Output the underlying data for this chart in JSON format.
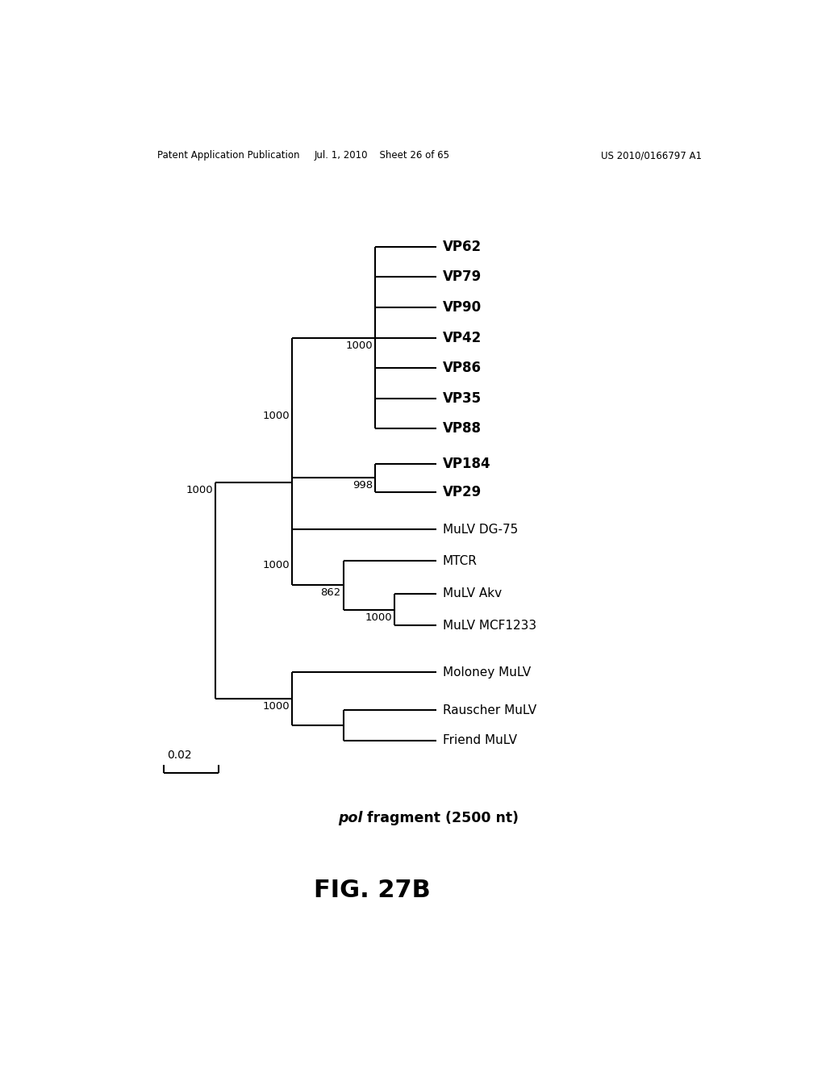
{
  "title_header_left": "Patent Application Publication",
  "title_header_mid": "Jul. 1, 2010    Sheet 26 of 65",
  "title_header_right": "US 2010/0166797 A1",
  "fig_label": "FIG. 27B",
  "caption_italic": "pol",
  "caption_rest": " fragment (2500 nt)",
  "scale_bar_label": "0.02",
  "bg_color": "#ffffff",
  "line_color": "#000000",
  "bold_labels": [
    "VP62",
    "VP79",
    "VP90",
    "VP42",
    "VP86",
    "VP35",
    "VP88",
    "VP184",
    "VP29"
  ]
}
